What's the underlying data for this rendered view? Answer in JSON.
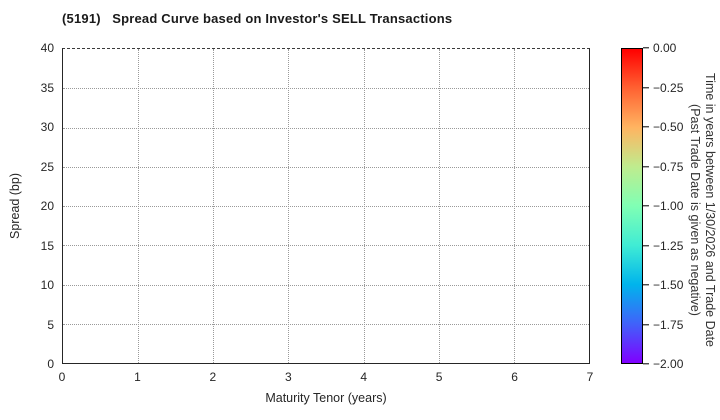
{
  "chart_data": {
    "type": "scatter",
    "title": "(5191)   Spread Curve based on Investor's SELL Transactions",
    "xlabel": "Maturity Tenor (years)",
    "ylabel": "Spread (bp)",
    "xlim": [
      0,
      7
    ],
    "ylim": [
      0,
      40
    ],
    "x_ticks": [
      "0",
      "1",
      "2",
      "3",
      "4",
      "5",
      "6",
      "7"
    ],
    "y_ticks": [
      "0",
      "5",
      "10",
      "15",
      "20",
      "25",
      "30",
      "35",
      "40"
    ],
    "grid": true,
    "points": [],
    "colorbar": {
      "min": -2.0,
      "max": 0.0,
      "tick_labels": [
        "0.00",
        "−0.25",
        "−0.50",
        "−0.75",
        "−1.00",
        "−1.25",
        "−1.50",
        "−1.75",
        "−2.00"
      ],
      "label_line1": "Time in years between 1/30/2026 and Trade Date",
      "label_line2": "(Past Trade Date is given as negative)",
      "colormap": "rainbow",
      "gradient_stops": [
        "#ff0000",
        "#ff6232",
        "#ffb461",
        "#bfec8e",
        "#80ffb4",
        "#40ecd4",
        "#00b4ec",
        "#4062fa",
        "#8000ff"
      ]
    }
  }
}
